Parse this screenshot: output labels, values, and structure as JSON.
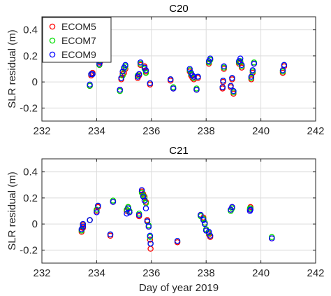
{
  "chart_data": [
    {
      "type": "scatter",
      "title": "C20",
      "ylabel": "SLR residual (m)",
      "xlabel": "",
      "xlim": [
        232,
        242
      ],
      "ylim": [
        -0.3,
        0.5
      ],
      "xticks": [
        232,
        234,
        236,
        238,
        240,
        242
      ],
      "yticks": [
        -0.2,
        0,
        0.2,
        0.4
      ],
      "ytick_labels": [
        "-0.2",
        "0",
        "0.2",
        "0.4"
      ],
      "grid": true,
      "legend": {
        "placement": "top-left"
      },
      "series": [
        {
          "name": "ECOM5",
          "color": "#ff0000",
          "points": [
            [
              233.75,
              -0.03
            ],
            [
              233.8,
              0.05
            ],
            [
              233.85,
              0.07
            ],
            [
              234.1,
              0.13
            ],
            [
              234.12,
              0.15
            ],
            [
              234.85,
              -0.06
            ],
            [
              234.9,
              0.02
            ],
            [
              234.95,
              0.06
            ],
            [
              235.0,
              0.07
            ],
            [
              235.05,
              0.1
            ],
            [
              235.5,
              0.03
            ],
            [
              235.55,
              0.05
            ],
            [
              235.6,
              0.13
            ],
            [
              235.75,
              0.12
            ],
            [
              235.8,
              0.08
            ],
            [
              235.95,
              -0.02
            ],
            [
              236.7,
              0.01
            ],
            [
              236.8,
              -0.05
            ],
            [
              237.4,
              0.08
            ],
            [
              237.45,
              0.05
            ],
            [
              237.5,
              0.03
            ],
            [
              237.55,
              0.02
            ],
            [
              237.65,
              -0.06
            ],
            [
              237.7,
              0.03
            ],
            [
              238.1,
              0.14
            ],
            [
              238.15,
              0.17
            ],
            [
              238.6,
              -0.05
            ],
            [
              238.62,
              0.0
            ],
            [
              238.65,
              0.1
            ],
            [
              238.9,
              -0.04
            ],
            [
              238.95,
              0.02
            ],
            [
              239.0,
              -0.09
            ],
            [
              239.2,
              0.14
            ],
            [
              239.25,
              0.15
            ],
            [
              239.3,
              0.11
            ],
            [
              239.65,
              0.02
            ],
            [
              239.7,
              0.07
            ],
            [
              239.75,
              0.14
            ],
            [
              240.8,
              0.07
            ],
            [
              240.85,
              0.12
            ]
          ]
        },
        {
          "name": "ECOM7",
          "color": "#00dd00",
          "points": [
            [
              233.75,
              -0.03
            ],
            [
              233.8,
              0.06
            ],
            [
              233.85,
              0.06
            ],
            [
              234.1,
              0.13
            ],
            [
              234.12,
              0.16
            ],
            [
              234.85,
              -0.07
            ],
            [
              234.9,
              0.03
            ],
            [
              234.95,
              0.05
            ],
            [
              235.0,
              0.1
            ],
            [
              235.05,
              0.12
            ],
            [
              235.5,
              0.05
            ],
            [
              235.55,
              0.06
            ],
            [
              235.6,
              0.14
            ],
            [
              235.75,
              0.1
            ],
            [
              235.8,
              0.07
            ],
            [
              235.95,
              -0.01
            ],
            [
              236.7,
              0.02
            ],
            [
              236.8,
              -0.04
            ],
            [
              237.4,
              0.09
            ],
            [
              237.45,
              0.06
            ],
            [
              237.5,
              0.05
            ],
            [
              237.55,
              0.03
            ],
            [
              237.65,
              -0.05
            ],
            [
              237.7,
              0.04
            ],
            [
              238.1,
              0.15
            ],
            [
              238.15,
              0.17
            ],
            [
              238.6,
              -0.04
            ],
            [
              238.62,
              0.01
            ],
            [
              238.65,
              0.11
            ],
            [
              238.9,
              -0.03
            ],
            [
              238.95,
              0.03
            ],
            [
              239.0,
              -0.08
            ],
            [
              239.2,
              0.15
            ],
            [
              239.25,
              0.16
            ],
            [
              239.3,
              0.12
            ],
            [
              239.65,
              0.03
            ],
            [
              239.7,
              0.08
            ],
            [
              239.75,
              0.15
            ],
            [
              240.8,
              0.08
            ],
            [
              240.85,
              0.13
            ]
          ]
        },
        {
          "name": "ECOM9",
          "color": "#0000ff",
          "points": [
            [
              233.75,
              -0.02
            ],
            [
              233.8,
              0.06
            ],
            [
              233.85,
              0.06
            ],
            [
              234.1,
              0.14
            ],
            [
              234.12,
              0.16
            ],
            [
              234.85,
              -0.06
            ],
            [
              234.9,
              0.03
            ],
            [
              234.95,
              0.08
            ],
            [
              235.0,
              0.11
            ],
            [
              235.05,
              0.13
            ],
            [
              235.5,
              0.04
            ],
            [
              235.55,
              0.06
            ],
            [
              235.6,
              0.15
            ],
            [
              235.75,
              0.11
            ],
            [
              235.8,
              0.09
            ],
            [
              235.95,
              -0.01
            ],
            [
              236.7,
              0.02
            ],
            [
              236.8,
              -0.05
            ],
            [
              237.4,
              0.1
            ],
            [
              237.45,
              0.07
            ],
            [
              237.5,
              0.05
            ],
            [
              237.55,
              0.04
            ],
            [
              237.65,
              -0.06
            ],
            [
              237.7,
              0.04
            ],
            [
              238.1,
              0.16
            ],
            [
              238.15,
              0.18
            ],
            [
              238.6,
              -0.04
            ],
            [
              238.62,
              0.01
            ],
            [
              238.65,
              0.12
            ],
            [
              238.9,
              -0.03
            ],
            [
              238.95,
              0.03
            ],
            [
              239.0,
              -0.07
            ],
            [
              239.2,
              0.16
            ],
            [
              239.25,
              0.18
            ],
            [
              239.3,
              0.13
            ],
            [
              239.65,
              0.04
            ],
            [
              239.7,
              0.09
            ],
            [
              239.75,
              0.14
            ],
            [
              240.8,
              0.09
            ],
            [
              240.85,
              0.13
            ]
          ]
        }
      ]
    },
    {
      "type": "scatter",
      "title": "C21",
      "ylabel": "SLR residual (m)",
      "xlabel": "Day of year 2019",
      "xlim": [
        232,
        242
      ],
      "ylim": [
        -0.3,
        0.5
      ],
      "xticks": [
        232,
        234,
        236,
        238,
        240,
        242
      ],
      "yticks": [
        -0.2,
        0,
        0.2,
        0.4
      ],
      "ytick_labels": [
        "-0.2",
        "0",
        "0.2",
        "0.4"
      ],
      "grid": true,
      "legend": null,
      "series": [
        {
          "name": "ECOM5",
          "color": "#ff0000",
          "points": [
            [
              233.45,
              -0.06
            ],
            [
              233.5,
              -0.03
            ],
            [
              233.5,
              -0.01
            ],
            [
              233.75,
              0.03
            ],
            [
              234.0,
              0.1
            ],
            [
              234.05,
              0.13
            ],
            [
              234.5,
              -0.09
            ],
            [
              234.6,
              0.17
            ],
            [
              235.1,
              0.1
            ],
            [
              235.15,
              0.13
            ],
            [
              235.2,
              0.09
            ],
            [
              235.55,
              0.06
            ],
            [
              235.65,
              0.25
            ],
            [
              235.7,
              0.23
            ],
            [
              235.75,
              0.21
            ],
            [
              235.8,
              0.17
            ],
            [
              235.85,
              0.03
            ],
            [
              235.9,
              -0.02
            ],
            [
              235.95,
              -0.12
            ],
            [
              235.97,
              -0.19
            ],
            [
              236.95,
              -0.14
            ],
            [
              237.8,
              0.07
            ],
            [
              237.9,
              0.05
            ],
            [
              237.95,
              0.01
            ],
            [
              238.0,
              -0.05
            ],
            [
              238.1,
              -0.08
            ],
            [
              238.15,
              -0.1
            ],
            [
              238.9,
              0.11
            ],
            [
              238.95,
              0.13
            ],
            [
              239.6,
              0.11
            ],
            [
              239.62,
              0.13
            ],
            [
              240.4,
              -0.11
            ]
          ]
        },
        {
          "name": "ECOM7",
          "color": "#00dd00",
          "points": [
            [
              233.45,
              -0.05
            ],
            [
              233.5,
              -0.02
            ],
            [
              233.5,
              0.0
            ],
            [
              233.75,
              0.03
            ],
            [
              234.0,
              0.11
            ],
            [
              234.05,
              0.14
            ],
            [
              234.5,
              -0.08
            ],
            [
              234.6,
              0.18
            ],
            [
              235.1,
              0.11
            ],
            [
              235.15,
              0.13
            ],
            [
              235.2,
              0.1
            ],
            [
              235.55,
              0.08
            ],
            [
              235.65,
              0.24
            ],
            [
              235.7,
              0.22
            ],
            [
              235.75,
              0.2
            ],
            [
              235.8,
              0.16
            ],
            [
              235.85,
              0.02
            ],
            [
              235.9,
              -0.01
            ],
            [
              235.95,
              -0.1
            ],
            [
              235.97,
              -0.15
            ],
            [
              236.95,
              -0.13
            ],
            [
              237.8,
              0.06
            ],
            [
              237.9,
              0.04
            ],
            [
              237.95,
              0.01
            ],
            [
              238.0,
              -0.04
            ],
            [
              238.1,
              -0.07
            ],
            [
              238.15,
              -0.09
            ],
            [
              238.9,
              0.1
            ],
            [
              238.95,
              0.12
            ],
            [
              239.6,
              0.12
            ],
            [
              239.62,
              0.12
            ],
            [
              240.4,
              -0.1
            ]
          ]
        },
        {
          "name": "ECOM9",
          "color": "#0000ff",
          "points": [
            [
              233.45,
              -0.04
            ],
            [
              233.5,
              -0.02
            ],
            [
              233.5,
              0.0
            ],
            [
              233.75,
              0.03
            ],
            [
              234.0,
              0.09
            ],
            [
              234.05,
              0.14
            ],
            [
              234.5,
              -0.08
            ],
            [
              234.6,
              0.17
            ],
            [
              235.1,
              0.08
            ],
            [
              235.15,
              0.12
            ],
            [
              235.2,
              0.09
            ],
            [
              235.55,
              0.07
            ],
            [
              235.65,
              0.26
            ],
            [
              235.7,
              0.21
            ],
            [
              235.75,
              0.18
            ],
            [
              235.8,
              0.12
            ],
            [
              235.85,
              0.02
            ],
            [
              235.9,
              -0.02
            ],
            [
              235.95,
              -0.09
            ],
            [
              235.97,
              -0.15
            ],
            [
              236.95,
              -0.13
            ],
            [
              237.8,
              0.07
            ],
            [
              237.9,
              0.03
            ],
            [
              237.95,
              0.0
            ],
            [
              238.0,
              -0.05
            ],
            [
              238.1,
              -0.06
            ],
            [
              238.15,
              -0.09
            ],
            [
              238.9,
              0.11
            ],
            [
              238.95,
              0.13
            ],
            [
              239.6,
              0.1
            ],
            [
              239.62,
              0.11
            ],
            [
              240.4,
              -0.11
            ]
          ]
        }
      ]
    }
  ]
}
